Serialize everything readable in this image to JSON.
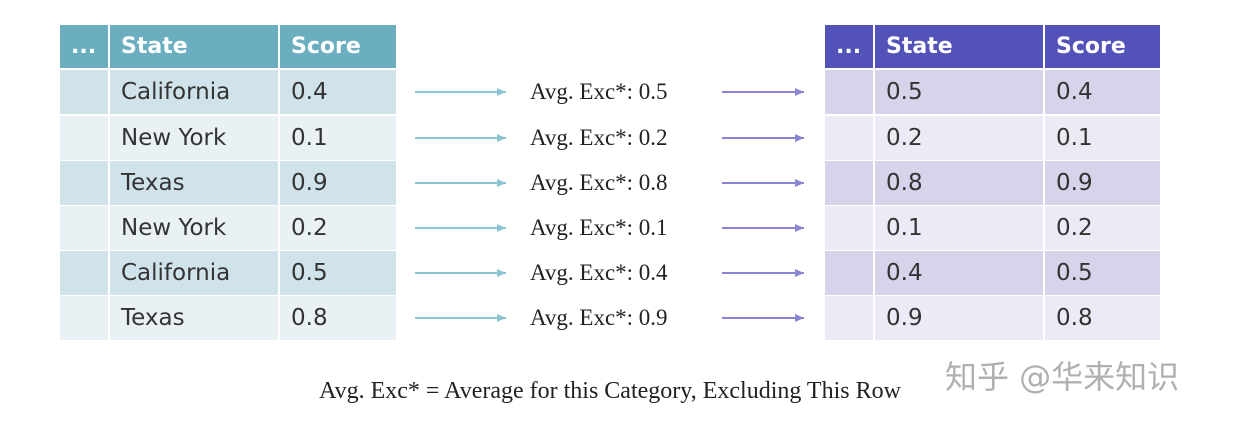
{
  "left_table": {
    "header": [
      "...",
      "State",
      "Score"
    ],
    "rows": [
      [
        "California",
        "0.4"
      ],
      [
        "New York",
        "0.1"
      ],
      [
        "Texas",
        "0.9"
      ],
      [
        "New York",
        "0.2"
      ],
      [
        "California",
        "0.5"
      ],
      [
        "Texas",
        "0.8"
      ]
    ]
  },
  "middle": {
    "labels": [
      "Avg. Exc*: 0.5",
      "Avg. Exc*: 0.2",
      "Avg. Exc*: 0.8",
      "Avg. Exc*: 0.1",
      "Avg. Exc*: 0.4",
      "Avg. Exc*: 0.9"
    ]
  },
  "right_table": {
    "header": [
      "...",
      "State",
      "Score"
    ],
    "rows": [
      [
        "0.5",
        "0.4"
      ],
      [
        "0.2",
        "0.1"
      ],
      [
        "0.8",
        "0.9"
      ],
      [
        "0.1",
        "0.2"
      ],
      [
        "0.4",
        "0.5"
      ],
      [
        "0.9",
        "0.8"
      ]
    ]
  },
  "footnote": "Avg. Exc* = Average for this Category, Excluding This Row",
  "watermark": "知乎 @华来知识"
}
